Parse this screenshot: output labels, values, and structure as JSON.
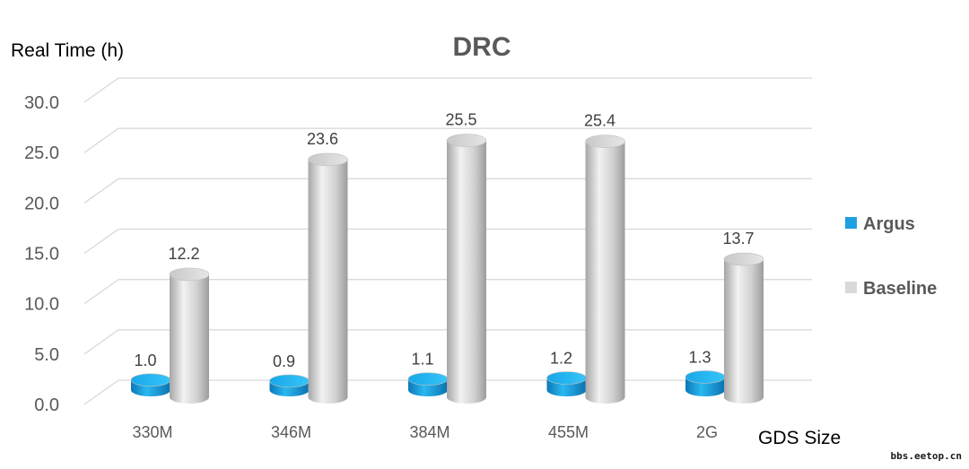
{
  "chart_data": {
    "type": "bar",
    "title": "DRC",
    "ylabel": "Real Time (h)",
    "xlabel": "GDS Size",
    "categories": [
      "330M",
      "346M",
      "384M",
      "455M",
      "2G"
    ],
    "series": [
      {
        "name": "Argus",
        "values": [
          1.0,
          0.9,
          1.1,
          1.2,
          1.3
        ],
        "labels": [
          "1.0",
          "0.9",
          "1.1",
          "1.2",
          "1.3"
        ],
        "color": "#1ba1e2"
      },
      {
        "name": "Baseline",
        "values": [
          12.2,
          23.6,
          25.5,
          25.4,
          13.7
        ],
        "labels": [
          "12.2",
          "23.6",
          "25.5",
          "25.4",
          "13.7"
        ],
        "color": "#d9d9d9"
      }
    ],
    "ylim": [
      0,
      30
    ],
    "yticks": [
      "0.0",
      "5.0",
      "10.0",
      "15.0",
      "20.0",
      "25.0",
      "30.0"
    ],
    "grid": true,
    "legend_position": "right",
    "style": "3d-cylinder"
  },
  "watermark": "bbs.eetop.cn"
}
